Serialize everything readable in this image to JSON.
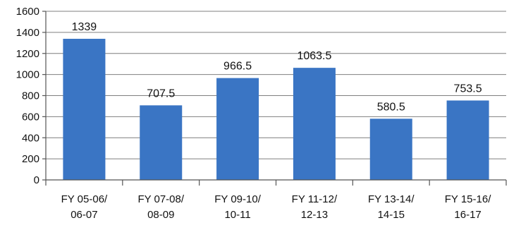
{
  "chart_data": {
    "type": "bar",
    "categories": [
      [
        "FY 05-06/",
        "06-07"
      ],
      [
        "FY 07-08/",
        "08-09"
      ],
      [
        "FY 09-10/",
        "10-11"
      ],
      [
        "FY 11-12/",
        "12-13"
      ],
      [
        "FY 13-14/",
        "14-15"
      ],
      [
        "FY 15-16/",
        "16-17"
      ]
    ],
    "values": [
      1339,
      707.5,
      966.5,
      1063.5,
      580.5,
      753.5
    ],
    "data_labels": [
      "1339",
      "707.5",
      "966.5",
      "1063.5",
      "580.5",
      "753.5"
    ],
    "y_ticks": [
      "0",
      "200",
      "400",
      "600",
      "800",
      "1000",
      "1200",
      "1400",
      "1600"
    ],
    "ylim": [
      0,
      1600
    ],
    "y_step": 200,
    "grid": true,
    "legend": "none",
    "bar_color": "#3a75c4"
  }
}
